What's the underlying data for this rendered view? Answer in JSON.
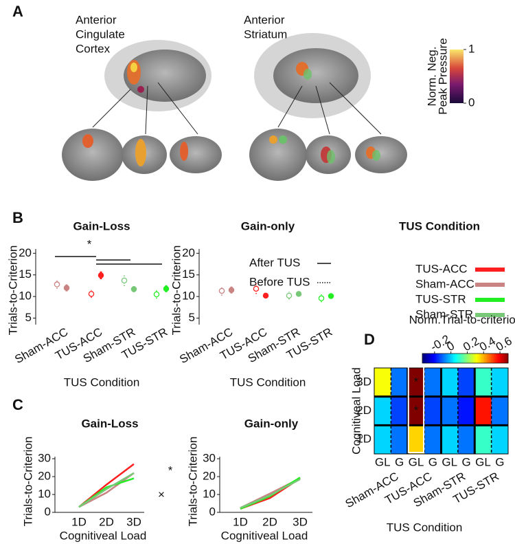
{
  "panel_labels": [
    "A",
    "B",
    "C",
    "D"
  ],
  "panel_a": {
    "regions": [
      {
        "title_lines": [
          "Anterior",
          "Cingulate",
          "Cortex"
        ]
      },
      {
        "title_lines": [
          "Anterior",
          "Striatum"
        ]
      }
    ],
    "colorbar": {
      "label_lines": [
        "Norm. Neg.",
        "Peak Pressure"
      ],
      "lim": [
        0,
        1
      ],
      "ticks": [
        0,
        1
      ]
    }
  },
  "legends": {
    "line_style": [
      {
        "name": "After TUS",
        "style": "solid"
      },
      {
        "name": "Before TUS",
        "style": "dotted"
      }
    ],
    "condition": {
      "title": "TUS Condition",
      "entries": [
        {
          "name": "TUS-ACC",
          "color": "#ff1f1f"
        },
        {
          "name": "Sham-ACC",
          "color": "#c98383"
        },
        {
          "name": "TUS-STR",
          "color": "#22ee22"
        },
        {
          "name": "Sham-STR",
          "color": "#77c877"
        }
      ]
    }
  },
  "chart_data": [
    {
      "type": "dot",
      "title": "Gain-Loss",
      "ylabel": "Trials-to-Criterion",
      "xlabel": "TUS Condition",
      "categories": [
        "Sham-ACC",
        "TUS-ACC",
        "Sham-STR",
        "TUS-STR"
      ],
      "colors": [
        "#c98383",
        "#ff1f1f",
        "#77c877",
        "#22ee22"
      ],
      "before": {
        "values": [
          12.8,
          10.6,
          13.7,
          10.5
        ],
        "errors": [
          1.0,
          0.9,
          1.3,
          1.0
        ]
      },
      "after": {
        "values": [
          12.0,
          14.9,
          11.7,
          11.8
        ],
        "errors": [
          0.8,
          0.9,
          0.7,
          0.8
        ]
      },
      "ylim": [
        3.5,
        21
      ],
      "yticks": [
        5,
        10,
        15,
        20
      ],
      "annotations": [
        {
          "text": "*"
        }
      ]
    },
    {
      "type": "dot",
      "title": "Gain-only",
      "ylabel": "Trials-to-Criterion",
      "xlabel": "TUS Condition",
      "categories": [
        "Sham-ACC",
        "TUS-ACC",
        "Sham-STR",
        "TUS-STR"
      ],
      "colors": [
        "#c98383",
        "#ff1f1f",
        "#77c877",
        "#22ee22"
      ],
      "before": {
        "values": [
          11.3,
          11.8,
          10.2,
          9.6
        ],
        "errors": [
          1.1,
          1.2,
          0.9,
          0.9
        ]
      },
      "after": {
        "values": [
          11.5,
          10.2,
          10.6,
          10.1
        ],
        "errors": [
          0.8,
          0.6,
          0.6,
          0.6
        ]
      },
      "ylim": [
        3.5,
        21
      ],
      "yticks": [
        5,
        10,
        15,
        20
      ]
    },
    {
      "type": "line",
      "title": "Gain-Loss",
      "ylabel": "Trials-to-Criterion",
      "xlabel": "Cognitiveal Load",
      "categories": [
        "1D",
        "2D",
        "3D"
      ],
      "series": [
        {
          "color": "#ff1f1f",
          "values": [
            3,
            15.5,
            27
          ]
        },
        {
          "color": "#c98383",
          "values": [
            3,
            11,
            22
          ]
        },
        {
          "color": "#22ee22",
          "values": [
            3,
            14,
            19
          ]
        },
        {
          "color": "#77c877",
          "values": [
            3,
            13,
            22
          ]
        }
      ],
      "ylim": [
        0,
        30
      ],
      "yticks": [
        0,
        10,
        20,
        30
      ],
      "annotations": [
        {
          "text": "*"
        },
        {
          "text": "×"
        }
      ]
    },
    {
      "type": "line",
      "title": "Gain-only",
      "ylabel": "Trials-to-Criterion",
      "xlabel": "Cognitiveal Load",
      "categories": [
        "1D",
        "2D",
        "3D"
      ],
      "series": [
        {
          "color": "#ff1f1f",
          "values": [
            2,
            8,
            19
          ]
        },
        {
          "color": "#c98383",
          "values": [
            2.5,
            10.5,
            19
          ]
        },
        {
          "color": "#22ee22",
          "values": [
            2,
            9,
            19.5
          ]
        },
        {
          "color": "#77c877",
          "values": [
            2.5,
            9.5,
            18.5
          ]
        }
      ],
      "ylim": [
        0,
        30
      ],
      "yticks": [
        0,
        10,
        20,
        30
      ]
    },
    {
      "type": "heatmap",
      "colorbar_label": "Norm.Trial-to-criterion",
      "colormap": "jet",
      "zlim": [
        -0.35,
        0.7
      ],
      "zticks": [
        -0.2,
        0,
        0.2,
        0.4,
        0.6
      ],
      "ylabel": "Cognitiveal Load",
      "xlabel": "TUS Condition",
      "rows": [
        "3D",
        "2D",
        "1D"
      ],
      "groups": [
        "Sham-ACC",
        "TUS-ACC",
        "Sham-STR",
        "TUS-STR"
      ],
      "subcolumns": [
        "GL",
        "G"
      ],
      "subcolumn_colors": [
        "#d02020",
        "#2030d0"
      ],
      "values": [
        [
          0.3,
          -0.1,
          0.7,
          -0.1,
          0.0,
          -0.15,
          0.1,
          0.0
        ],
        [
          0.0,
          -0.15,
          0.7,
          -0.15,
          -0.1,
          -0.2,
          0.55,
          -0.1
        ],
        [
          0.0,
          -0.1,
          0.35,
          -0.1,
          0.0,
          -0.1,
          0.1,
          0.0
        ]
      ],
      "highlight_group": 1,
      "annotations": [
        {
          "row": 0,
          "col": 2,
          "text": "*"
        },
        {
          "row": 1,
          "col": 2,
          "text": "*"
        }
      ]
    }
  ]
}
